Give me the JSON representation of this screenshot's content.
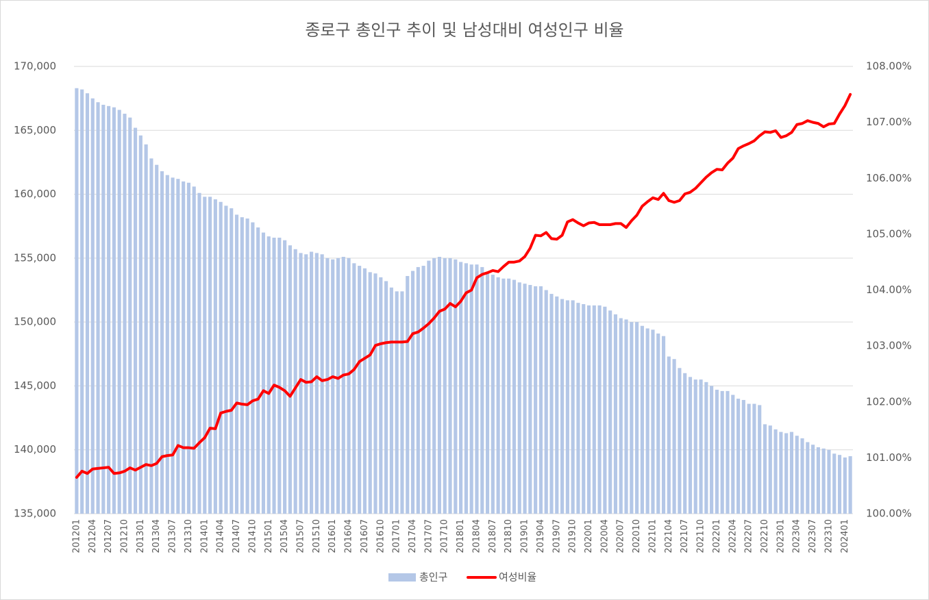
{
  "chart_data": {
    "type": "bar-line",
    "title": "종로구 총인구 추이 및 남성대비 여성인구 비율",
    "categories": [
      "201201",
      null,
      null,
      "201204",
      null,
      null,
      "201207",
      null,
      null,
      "201210",
      null,
      null,
      "201301",
      null,
      null,
      "201304",
      null,
      null,
      "201307",
      null,
      null,
      "201310",
      null,
      null,
      "201401",
      null,
      null,
      "201404",
      null,
      null,
      "201407",
      null,
      null,
      "201410",
      null,
      null,
      "201501",
      null,
      null,
      "201504",
      null,
      null,
      "201507",
      null,
      null,
      "201510",
      null,
      null,
      "201601",
      null,
      null,
      "201604",
      null,
      null,
      "201607",
      null,
      null,
      "201610",
      null,
      null,
      "201701",
      null,
      null,
      "201704",
      null,
      null,
      "201707",
      null,
      null,
      "201710",
      null,
      null,
      "201801",
      null,
      null,
      "201804",
      null,
      null,
      "201807",
      null,
      null,
      "201810",
      null,
      null,
      "201901",
      null,
      null,
      "201904",
      null,
      null,
      "201907",
      null,
      null,
      "201910",
      null,
      null,
      "202001",
      null,
      null,
      "202004",
      null,
      null,
      "202007",
      null,
      null,
      "202010",
      null,
      null,
      "202101",
      null,
      null,
      "202104",
      null,
      null,
      "202107",
      null,
      null,
      "202110",
      null,
      null,
      "202201",
      null,
      null,
      "202204",
      null,
      null,
      "202207",
      null,
      null,
      "202210",
      null,
      null,
      "202301",
      null,
      null,
      "202304",
      null,
      null,
      "202307",
      null,
      null,
      "202310",
      null,
      null,
      "202401",
      null
    ],
    "series": [
      {
        "name": "총인구",
        "type": "bar",
        "color": "#b4c7e7",
        "axis": "y",
        "values": [
          168300,
          168200,
          167900,
          167500,
          167200,
          167000,
          166900,
          166800,
          166600,
          166300,
          166000,
          165200,
          164600,
          163900,
          162800,
          162300,
          161800,
          161500,
          161300,
          161200,
          161000,
          160900,
          160600,
          160100,
          159800,
          159800,
          159600,
          159400,
          159100,
          158900,
          158400,
          158200,
          158100,
          157800,
          157400,
          157000,
          156700,
          156600,
          156600,
          156400,
          156000,
          155700,
          155400,
          155300,
          155500,
          155400,
          155300,
          155000,
          154900,
          155000,
          155100,
          155000,
          154600,
          154400,
          154200,
          153900,
          153800,
          153500,
          153200,
          152700,
          152400,
          152400,
          153600,
          154000,
          154300,
          154400,
          154800,
          155000,
          155100,
          155000,
          155000,
          154900,
          154700,
          154600,
          154500,
          154500,
          154300,
          153900,
          153700,
          153500,
          153400,
          153400,
          153300,
          153100,
          153000,
          152900,
          152800,
          152800,
          152500,
          152200,
          152000,
          151800,
          151700,
          151700,
          151500,
          151400,
          151300,
          151300,
          151300,
          151200,
          150900,
          150600,
          150300,
          150200,
          150000,
          150000,
          149700,
          149500,
          149400,
          149100,
          148900,
          147300,
          147100,
          146400,
          146000,
          145700,
          145500,
          145500,
          145300,
          145000,
          144700,
          144600,
          144600,
          144300,
          144000,
          143900,
          143600,
          143600,
          143500,
          142000,
          141900,
          141600,
          141400,
          141300,
          141400,
          141100,
          140900,
          140600,
          140400,
          140200,
          140100,
          140000,
          139700,
          139600,
          139400,
          139500
        ]
      },
      {
        "name": "여성비율",
        "type": "line",
        "color": "#ff0000",
        "axis": "y2",
        "values": [
          100.65,
          100.76,
          100.72,
          100.8,
          100.81,
          100.82,
          100.83,
          100.72,
          100.73,
          100.76,
          100.82,
          100.78,
          100.83,
          100.88,
          100.86,
          100.9,
          101.02,
          101.04,
          101.05,
          101.22,
          101.18,
          101.18,
          101.17,
          101.27,
          101.36,
          101.53,
          101.52,
          101.8,
          101.83,
          101.85,
          101.98,
          101.96,
          101.95,
          102.02,
          102.05,
          102.2,
          102.15,
          102.3,
          102.26,
          102.2,
          102.1,
          102.25,
          102.4,
          102.35,
          102.36,
          102.45,
          102.38,
          102.4,
          102.45,
          102.42,
          102.48,
          102.5,
          102.58,
          102.72,
          102.78,
          102.84,
          103.01,
          103.04,
          103.06,
          103.07,
          103.07,
          103.07,
          103.08,
          103.22,
          103.25,
          103.32,
          103.4,
          103.5,
          103.62,
          103.66,
          103.76,
          103.7,
          103.8,
          103.95,
          104.0,
          104.22,
          104.28,
          104.31,
          104.35,
          104.33,
          104.42,
          104.5,
          104.5,
          104.52,
          104.6,
          104.75,
          104.98,
          104.97,
          105.03,
          104.92,
          104.91,
          104.98,
          105.22,
          105.26,
          105.2,
          105.15,
          105.2,
          105.21,
          105.17,
          105.17,
          105.17,
          105.19,
          105.19,
          105.12,
          105.24,
          105.34,
          105.5,
          105.58,
          105.65,
          105.62,
          105.73,
          105.6,
          105.57,
          105.6,
          105.72,
          105.75,
          105.82,
          105.92,
          106.02,
          106.1,
          106.16,
          106.15,
          106.27,
          106.36,
          106.53,
          106.58,
          106.62,
          106.67,
          106.76,
          106.83,
          106.82,
          106.85,
          106.73,
          106.76,
          106.82,
          106.96,
          106.98,
          107.03,
          107.0,
          106.98,
          106.92,
          106.97,
          106.98,
          107.15,
          107.3,
          107.5
        ]
      }
    ],
    "ylim": [
      135000,
      170000
    ],
    "yticks": [
      {
        "value": 135000,
        "label": "135,000"
      },
      {
        "value": 140000,
        "label": "140,000"
      },
      {
        "value": 145000,
        "label": "145,000"
      },
      {
        "value": 150000,
        "label": "150,000"
      },
      {
        "value": 155000,
        "label": "155,000"
      },
      {
        "value": 160000,
        "label": "160,000"
      },
      {
        "value": 165000,
        "label": "165,000"
      },
      {
        "value": 170000,
        "label": "170,000"
      }
    ],
    "y2lim": [
      100,
      108
    ],
    "y2ticks": [
      {
        "value": 100,
        "label": "100.00%"
      },
      {
        "value": 101,
        "label": "101.00%"
      },
      {
        "value": 102,
        "label": "102.00%"
      },
      {
        "value": 103,
        "label": "103.00%"
      },
      {
        "value": 104,
        "label": "104.00%"
      },
      {
        "value": 105,
        "label": "105.00%"
      },
      {
        "value": 106,
        "label": "106.00%"
      },
      {
        "value": 107,
        "label": "107.00%"
      },
      {
        "value": 108,
        "label": "108.00%"
      }
    ],
    "grid": true,
    "legend": "bottom"
  }
}
